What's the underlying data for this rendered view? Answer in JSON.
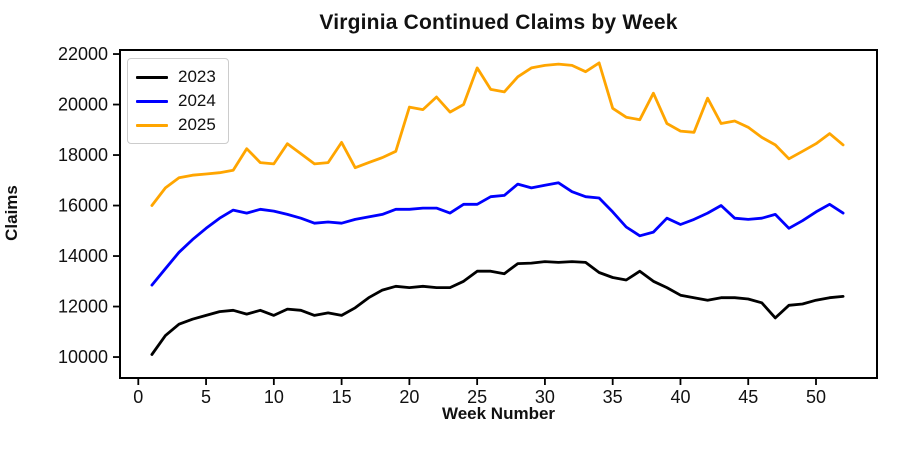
{
  "figure": {
    "background": "#ffffff"
  },
  "chart_data": {
    "type": "line",
    "title": "Virginia Continued Claims by Week",
    "xlabel": "Week Number",
    "ylabel": "Claims",
    "x_start_week": 1,
    "xticks": [
      0,
      5,
      10,
      15,
      20,
      25,
      30,
      35,
      40,
      45,
      50
    ],
    "yticks": [
      10000,
      12000,
      14000,
      16000,
      18000,
      20000,
      22000
    ],
    "xlim": [
      -1.35,
      54.5
    ],
    "ylim": [
      9170,
      22160
    ],
    "grid": false,
    "legend_position": "upper left",
    "axis_color": "#000000",
    "series": [
      {
        "name": "2023",
        "color": "#000000",
        "values": [
          10100,
          10850,
          11300,
          11500,
          11650,
          11800,
          11850,
          11700,
          11850,
          11650,
          11900,
          11850,
          11650,
          11750,
          11650,
          11950,
          12350,
          12650,
          12800,
          12750,
          12800,
          12750,
          12750,
          13000,
          13400,
          13400,
          13300,
          13700,
          13720,
          13780,
          13750,
          13780,
          13750,
          13350,
          13150,
          13050,
          13400,
          13000,
          12750,
          12450,
          12350,
          12250,
          12350,
          12350,
          12300,
          12150,
          11550,
          12050,
          12100,
          12250,
          12350,
          12400
        ]
      },
      {
        "name": "2024",
        "color": "#0000ff",
        "values": [
          12850,
          13500,
          14150,
          14650,
          15100,
          15500,
          15820,
          15700,
          15850,
          15780,
          15650,
          15500,
          15300,
          15350,
          15300,
          15450,
          15550,
          15650,
          15850,
          15850,
          15900,
          15900,
          15700,
          16050,
          16050,
          16350,
          16400,
          16850,
          16700,
          16800,
          16900,
          16550,
          16350,
          16300,
          15750,
          15150,
          14800,
          14950,
          15500,
          15250,
          15450,
          15700,
          16000,
          15500,
          15450,
          15500,
          15650,
          15100,
          15400,
          15750,
          16050,
          15700
        ]
      },
      {
        "name": "2025",
        "color": "#ffa500",
        "values": [
          16000,
          16700,
          17100,
          17200,
          17250,
          17300,
          17400,
          18250,
          17700,
          17650,
          18450,
          18050,
          17650,
          17700,
          18500,
          17500,
          17700,
          17900,
          18150,
          19900,
          19800,
          20300,
          19700,
          20000,
          21450,
          20600,
          20500,
          21100,
          21450,
          21550,
          21600,
          21550,
          21300,
          21650,
          19850,
          19500,
          19400,
          20450,
          19250,
          18950,
          18900,
          20250,
          19250,
          19350,
          19100,
          18700,
          18400,
          17850,
          18150,
          18450,
          18850,
          18400
        ]
      }
    ]
  }
}
